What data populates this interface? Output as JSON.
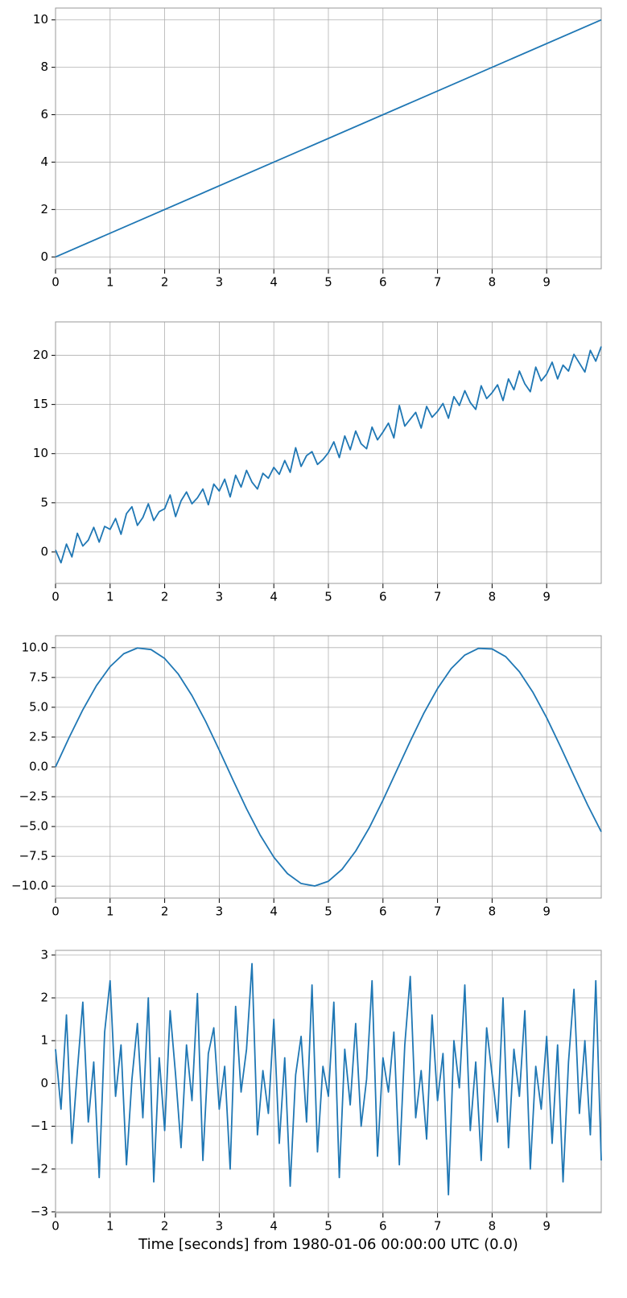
{
  "chart_data": [
    {
      "type": "line",
      "x": [
        0,
        10
      ],
      "series": [
        {
          "color": "#1f77b4",
          "values": [
            0,
            10
          ]
        }
      ],
      "xlim": [
        0,
        10
      ],
      "ylim": [
        -0.5,
        10.5
      ],
      "xticks": [
        0,
        1,
        2,
        3,
        4,
        5,
        6,
        7,
        8,
        9
      ],
      "yticks": [
        0,
        2,
        4,
        6,
        8,
        10
      ],
      "grid": true
    },
    {
      "type": "line",
      "x": [
        0,
        0.1,
        0.2,
        0.3,
        0.4,
        0.5,
        0.6,
        0.7,
        0.8,
        0.9,
        1,
        1.1,
        1.2,
        1.3,
        1.4,
        1.5,
        1.6,
        1.7,
        1.8,
        1.9,
        2,
        2.1,
        2.2,
        2.3,
        2.4,
        2.5,
        2.6,
        2.7,
        2.8,
        2.9,
        3,
        3.1,
        3.2,
        3.3,
        3.4,
        3.5,
        3.6,
        3.7,
        3.8,
        3.9,
        4,
        4.1,
        4.2,
        4.3,
        4.4,
        4.5,
        4.6,
        4.7,
        4.8,
        4.9,
        5,
        5.1,
        5.2,
        5.3,
        5.4,
        5.5,
        5.6,
        5.7,
        5.8,
        5.9,
        6,
        6.1,
        6.2,
        6.3,
        6.4,
        6.5,
        6.6,
        6.7,
        6.8,
        6.9,
        7,
        7.1,
        7.2,
        7.3,
        7.4,
        7.5,
        7.6,
        7.7,
        7.8,
        7.9,
        8,
        8.1,
        8.2,
        8.3,
        8.4,
        8.5,
        8.6,
        8.7,
        8.8,
        8.9,
        9,
        9.1,
        9.2,
        9.3,
        9.4,
        9.5,
        9.6,
        9.7,
        9.8,
        9.9,
        10
      ],
      "series": [
        {
          "color": "#1f77b4",
          "values": [
            0.2,
            -1.1,
            0.8,
            -0.5,
            1.9,
            0.6,
            1.2,
            2.5,
            1.0,
            2.6,
            2.3,
            3.4,
            1.8,
            3.9,
            4.6,
            2.7,
            3.5,
            4.9,
            3.2,
            4.1,
            4.4,
            5.8,
            3.6,
            5.2,
            6.1,
            4.9,
            5.5,
            6.4,
            4.8,
            6.9,
            6.2,
            7.4,
            5.6,
            7.8,
            6.6,
            8.3,
            7.1,
            6.4,
            8.0,
            7.5,
            8.6,
            7.9,
            9.3,
            8.1,
            10.6,
            8.7,
            9.8,
            10.2,
            8.9,
            9.4,
            10.1,
            11.2,
            9.6,
            11.8,
            10.4,
            12.3,
            11.0,
            10.5,
            12.7,
            11.4,
            12.2,
            13.1,
            11.6,
            14.9,
            12.8,
            13.5,
            14.2,
            12.6,
            14.8,
            13.7,
            14.3,
            15.1,
            13.6,
            15.8,
            14.9,
            16.4,
            15.2,
            14.5,
            16.9,
            15.6,
            16.2,
            17.0,
            15.4,
            17.6,
            16.5,
            18.4,
            17.1,
            16.3,
            18.8,
            17.4,
            18.1,
            19.3,
            17.6,
            19.0,
            18.4,
            20.1,
            19.2,
            18.3,
            20.5,
            19.4,
            20.9
          ]
        }
      ],
      "xlim": [
        0,
        10
      ],
      "ylim": [
        -3.2,
        23.4
      ],
      "xticks": [
        0,
        1,
        2,
        3,
        4,
        5,
        6,
        7,
        8,
        9
      ],
      "yticks": [
        0,
        5,
        10,
        15,
        20
      ],
      "grid": true
    },
    {
      "type": "line",
      "x": [
        0,
        0.25,
        0.5,
        0.75,
        1,
        1.25,
        1.5,
        1.75,
        2,
        2.25,
        2.5,
        2.75,
        3,
        3.25,
        3.5,
        3.75,
        4,
        4.25,
        4.5,
        4.75,
        5,
        5.25,
        5.5,
        5.75,
        6,
        6.25,
        6.5,
        6.75,
        7,
        7.25,
        7.5,
        7.75,
        8,
        8.25,
        8.5,
        8.75,
        9,
        9.25,
        9.5,
        9.75,
        10
      ],
      "series": [
        {
          "color": "#1f77b4",
          "values": [
            0,
            2.47,
            4.79,
            6.82,
            8.41,
            9.49,
            9.97,
            9.84,
            9.09,
            7.78,
            5.98,
            3.82,
            1.41,
            -1.08,
            -3.51,
            -5.72,
            -7.57,
            -8.95,
            -9.78,
            -9.99,
            -9.59,
            -8.59,
            -7.06,
            -5.1,
            -2.79,
            -0.32,
            2.15,
            4.51,
            6.57,
            8.24,
            9.38,
            9.94,
            9.89,
            9.24,
            7.98,
            6.24,
            4.12,
            1.73,
            -0.75,
            -3.19,
            -5.44
          ]
        }
      ],
      "xlim": [
        0,
        10
      ],
      "ylim": [
        -11,
        11
      ],
      "xticks": [
        0,
        1,
        2,
        3,
        4,
        5,
        6,
        7,
        8,
        9
      ],
      "yticks": [
        {
          "value": 10,
          "label": "10.0"
        },
        7.5,
        {
          "value": 5,
          "label": "5.0"
        },
        2.5,
        {
          "value": 0,
          "label": "0.0"
        },
        {
          "value": -2.5,
          "label": "−2.5"
        },
        {
          "value": -5,
          "label": "−5.0"
        },
        {
          "value": -7.5,
          "label": "−7.5"
        },
        {
          "value": -10,
          "label": "−10.0"
        }
      ],
      "grid": true
    },
    {
      "type": "line",
      "x": [
        0,
        0.1,
        0.2,
        0.3,
        0.4,
        0.5,
        0.6,
        0.7,
        0.8,
        0.9,
        1,
        1.1,
        1.2,
        1.3,
        1.4,
        1.5,
        1.6,
        1.7,
        1.8,
        1.9,
        2,
        2.1,
        2.2,
        2.3,
        2.4,
        2.5,
        2.6,
        2.7,
        2.8,
        2.9,
        3,
        3.1,
        3.2,
        3.3,
        3.4,
        3.5,
        3.6,
        3.7,
        3.8,
        3.9,
        4,
        4.1,
        4.2,
        4.3,
        4.4,
        4.5,
        4.6,
        4.7,
        4.8,
        4.9,
        5,
        5.1,
        5.2,
        5.3,
        5.4,
        5.5,
        5.6,
        5.7,
        5.8,
        5.9,
        6,
        6.1,
        6.2,
        6.3,
        6.4,
        6.5,
        6.6,
        6.7,
        6.8,
        6.9,
        7,
        7.1,
        7.2,
        7.3,
        7.4,
        7.5,
        7.6,
        7.7,
        7.8,
        7.9,
        8,
        8.1,
        8.2,
        8.3,
        8.4,
        8.5,
        8.6,
        8.7,
        8.8,
        8.9,
        9,
        9.1,
        9.2,
        9.3,
        9.4,
        9.5,
        9.6,
        9.7,
        9.8,
        9.9,
        10
      ],
      "series": [
        {
          "color": "#1f77b4",
          "values": [
            0.8,
            -0.6,
            1.6,
            -1.4,
            0.3,
            1.9,
            -0.9,
            0.5,
            -2.2,
            1.2,
            2.4,
            -0.3,
            0.9,
            -1.9,
            0.1,
            1.4,
            -0.8,
            2.0,
            -2.3,
            0.6,
            -1.1,
            1.7,
            0.2,
            -1.5,
            0.9,
            -0.4,
            2.1,
            -1.8,
            0.7,
            1.3,
            -0.6,
            0.4,
            -2.0,
            1.8,
            -0.2,
            0.8,
            2.8,
            -1.2,
            0.3,
            -0.7,
            1.5,
            -1.4,
            0.6,
            -2.4,
            0.2,
            1.1,
            -0.9,
            2.3,
            -1.6,
            0.4,
            -0.3,
            1.9,
            -2.2,
            0.8,
            -0.5,
            1.4,
            -1.0,
            0.1,
            2.4,
            -1.7,
            0.6,
            -0.2,
            1.2,
            -1.9,
            0.9,
            2.5,
            -0.8,
            0.3,
            -1.3,
            1.6,
            -0.4,
            0.7,
            -2.6,
            1.0,
            -0.1,
            2.3,
            -1.1,
            0.5,
            -1.8,
            1.3,
            0.2,
            -0.9,
            2.0,
            -1.5,
            0.8,
            -0.3,
            1.7,
            -2.0,
            0.4,
            -0.6,
            1.1,
            -1.4,
            0.9,
            -2.3,
            0.5,
            2.2,
            -0.7,
            1.0,
            -1.2,
            2.4,
            -1.8
          ]
        }
      ],
      "xlim": [
        0,
        10
      ],
      "ylim": [
        -3.02,
        3.11
      ],
      "xticks": [
        0,
        1,
        2,
        3,
        4,
        5,
        6,
        7,
        8,
        9
      ],
      "yticks": [
        {
          "value": -3,
          "label": "−3"
        },
        {
          "value": -2,
          "label": "−2"
        },
        {
          "value": -1,
          "label": "−1"
        },
        0,
        1,
        2,
        3
      ],
      "grid": true,
      "x_label": "Time [seconds] from 1980-01-06 00:00:00 UTC (0.0)"
    }
  ]
}
